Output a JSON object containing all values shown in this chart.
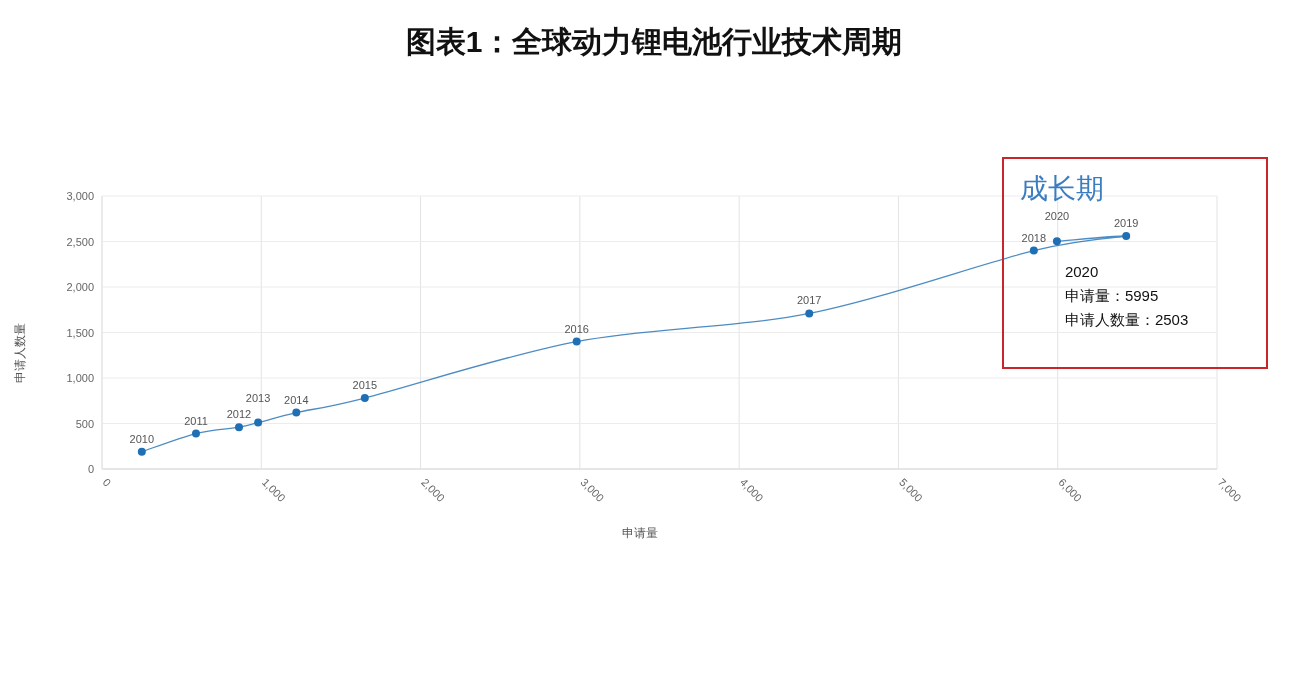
{
  "chart_data": {
    "type": "line",
    "title": "图表1：全球动力锂电池行业技术周期",
    "xlabel": "申请量",
    "ylabel": "申请人数量",
    "x": [
      250,
      590,
      860,
      980,
      1220,
      1650,
      2980,
      4440,
      5850,
      6430,
      5995
    ],
    "values": [
      190,
      390,
      460,
      510,
      620,
      780,
      1400,
      1710,
      2400,
      2560,
      2503
    ],
    "color": "#1f6fb4",
    "marker": "circle",
    "line_style": "solid",
    "grid": true,
    "xlim": [
      0,
      7000
    ],
    "xticks": [
      0,
      {
        "value": 1000,
        "label": "1,000"
      },
      {
        "value": 2000,
        "label": "2,000"
      },
      {
        "value": 3000,
        "label": "3,000"
      },
      {
        "value": 4000,
        "label": "4,000"
      },
      {
        "value": 5000,
        "label": "5,000"
      },
      {
        "value": 6000,
        "label": "6,000"
      },
      {
        "value": 7000,
        "label": "7,000"
      }
    ],
    "ylim": [
      0,
      3000
    ],
    "yticks": [
      0,
      500,
      {
        "value": 1000,
        "label": "1,000"
      },
      {
        "value": 1500,
        "label": "1,500"
      },
      {
        "value": 2000,
        "label": "2,000"
      },
      {
        "value": 2500,
        "label": "2,500"
      },
      {
        "value": 3000,
        "label": "3,000"
      }
    ],
    "annotations": [
      "成长期",
      {
        "text": "2020\n申请量：5995\n申请人数量：2503",
        "x": 5995,
        "y": 2503
      },
      {
        "text": "2010",
        "x": 250,
        "y": 190
      },
      {
        "text": "2011",
        "x": 590,
        "y": 390
      },
      {
        "text": "2012",
        "x": 860,
        "y": 460
      },
      {
        "text": "2013",
        "x": 980,
        "y": 510
      },
      {
        "text": "2014",
        "x": 1220,
        "y": 620
      },
      {
        "text": "2015",
        "x": 1650,
        "y": 780
      },
      {
        "text": "2016",
        "x": 2980,
        "y": 1400
      },
      {
        "text": "2017",
        "x": 4440,
        "y": 1710
      },
      {
        "text": "2018",
        "x": 5850,
        "y": 2400
      },
      {
        "text": "2019",
        "x": 6430,
        "y": 2560
      },
      {
        "text": "2020",
        "x": 5995,
        "y": 2503
      }
    ]
  }
}
